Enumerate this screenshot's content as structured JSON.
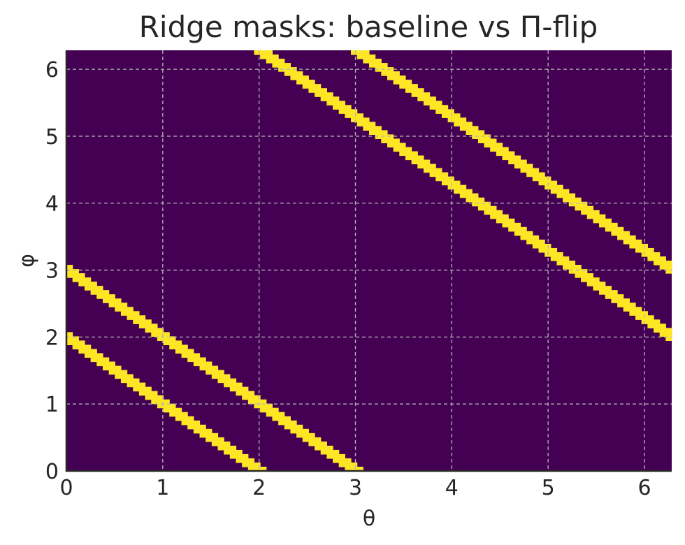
{
  "chart_data": {
    "type": "heatmap",
    "title": "Ridge masks: baseline vs Π-flip",
    "xlabel": "θ",
    "ylabel": "φ",
    "xlim": [
      0,
      6.283
    ],
    "ylim": [
      0,
      6.283
    ],
    "xticks": [
      "0",
      "1",
      "2",
      "3",
      "4",
      "5",
      "6"
    ],
    "yticks": [
      "0",
      "1",
      "2",
      "3",
      "4",
      "5",
      "6"
    ],
    "grid": true,
    "colormap": "viridis (binary mask)",
    "background_color": "#440154",
    "mask_color": "#fde725",
    "grid_color": "#b4b4b4",
    "grid_resolution": 100,
    "mask_rule": "θ + φ ≈ c (mod 2π), band half-width 0.1",
    "ridges": [
      {
        "theta_plus_phi": 2.0
      },
      {
        "theta_plus_phi": 3.0
      },
      {
        "theta_plus_phi": 8.283
      },
      {
        "theta_plus_phi": 9.283
      }
    ]
  }
}
